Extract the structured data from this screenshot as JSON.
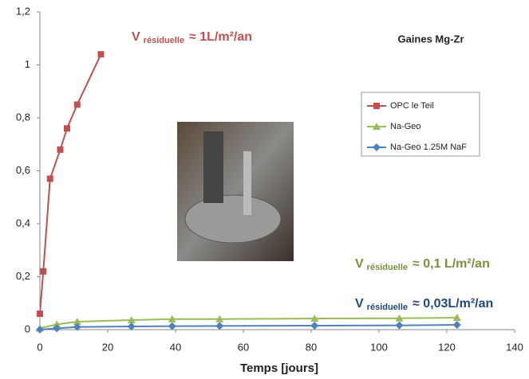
{
  "chart_data": {
    "type": "line",
    "title": "Gaines Mg-Zr",
    "x_label": "Temps [jours]",
    "xlim": [
      0,
      140
    ],
    "xticks": [
      0,
      20,
      40,
      60,
      80,
      100,
      120,
      140
    ],
    "ylim": [
      0,
      1.2
    ],
    "yticks": [
      0,
      {
        "value": 0.2,
        "label": "0,2"
      },
      {
        "value": 0.4,
        "label": "0,4"
      },
      {
        "value": 0.6,
        "label": "0,6"
      },
      {
        "value": 0.8,
        "label": "0,8"
      },
      1,
      {
        "value": 1.2,
        "label": "1,2"
      }
    ],
    "grid": false,
    "series": [
      {
        "name": "OPC le Teil",
        "color": "#c0504d",
        "marker": "square",
        "x": [
          0,
          1,
          3,
          6,
          8,
          11,
          18
        ],
        "values": [
          0.06,
          0.22,
          0.57,
          0.68,
          0.76,
          0.85,
          1.04
        ]
      },
      {
        "name": "Na-Geo",
        "color": "#9bbb59",
        "marker": "triangle",
        "x": [
          0,
          5,
          11,
          27,
          39,
          53,
          81,
          106,
          123
        ],
        "values": [
          0.005,
          0.02,
          0.03,
          0.036,
          0.04,
          0.04,
          0.042,
          0.043,
          0.045
        ]
      },
      {
        "name": "Na-Geo 1.25M NaF",
        "color": "#4f81bd",
        "marker": "diamond",
        "x": [
          0,
          5,
          11,
          27,
          39,
          53,
          81,
          106,
          123
        ],
        "values": [
          0.0,
          0.005,
          0.01,
          0.012,
          0.013,
          0.014,
          0.015,
          0.016,
          0.018
        ]
      }
    ],
    "annotations": [
      {
        "v": "V",
        "sub": "résiduelle",
        "text": "≈ 1L/m²/an",
        "color": "#c0504d"
      },
      {
        "v": "V",
        "sub": "résiduelle",
        "text": "≈ 0,1 L/m²/an",
        "color": "#76923c"
      },
      {
        "v": "V",
        "sub": "résiduelle",
        "text": "≈ 0,03L/m²/an",
        "color": "#1f497d"
      }
    ]
  }
}
